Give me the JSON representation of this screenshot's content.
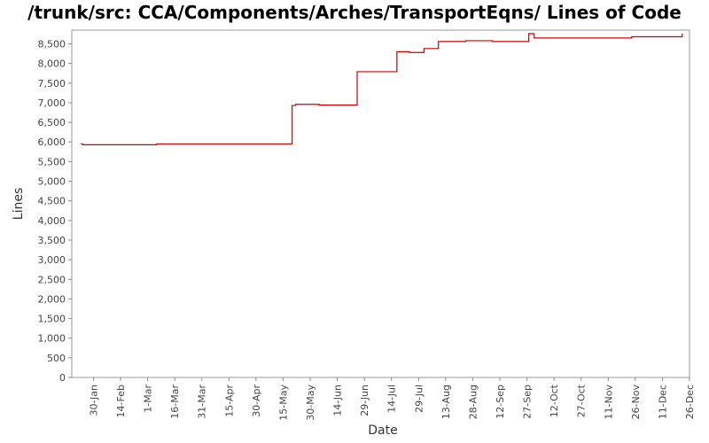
{
  "chart_data": {
    "type": "line",
    "title": "/trunk/src: CCA/Components/Arches/TransportEqns/ Lines of Code",
    "xlabel": "Date",
    "ylabel": "Lines",
    "x_tick_labels": [
      "30-Jan",
      "14-Feb",
      "1-Mar",
      "16-Mar",
      "31-Mar",
      "15-Apr",
      "30-Apr",
      "15-May",
      "30-May",
      "14-Jun",
      "29-Jun",
      "14-Jul",
      "29-Jul",
      "13-Aug",
      "28-Aug",
      "12-Sep",
      "27-Sep",
      "12-Oct",
      "27-Oct",
      "11-Nov",
      "26-Nov",
      "11-Dec",
      "26-Dec"
    ],
    "x_tick_days": [
      30,
      45,
      60,
      75,
      90,
      105,
      120,
      135,
      150,
      165,
      180,
      195,
      210,
      225,
      240,
      255,
      270,
      285,
      300,
      315,
      330,
      345,
      360
    ],
    "xlim": [
      18,
      360
    ],
    "y_ticks": [
      0,
      500,
      1000,
      1500,
      2000,
      2500,
      3000,
      3500,
      4000,
      4500,
      5000,
      5500,
      6000,
      6500,
      7000,
      7500,
      8000,
      8500
    ],
    "y_tick_labels": [
      "0",
      "500",
      "1,000",
      "1,500",
      "2,000",
      "2,500",
      "3,000",
      "3,500",
      "4,000",
      "4,500",
      "5,000",
      "5,500",
      "6,000",
      "6,500",
      "7,000",
      "7,500",
      "8,000",
      "8,500"
    ],
    "ylim": [
      0,
      8850
    ],
    "grid": false,
    "series": [
      {
        "color": "#cc0000",
        "step": true,
        "x": [
          23,
          24,
          64,
          65,
          139,
          140,
          142,
          154,
          155,
          175,
          176,
          197,
          198,
          204,
          205,
          212,
          213,
          220,
          221,
          235,
          236,
          250,
          251,
          270,
          271,
          273,
          274,
          327,
          328,
          355,
          356
        ],
        "y": [
          5950,
          5930,
          5930,
          5950,
          5950,
          6930,
          6960,
          6960,
          6940,
          6940,
          7790,
          7790,
          8300,
          8300,
          8280,
          8280,
          8380,
          8380,
          8560,
          8560,
          8580,
          8580,
          8560,
          8560,
          8760,
          8760,
          8650,
          8650,
          8680,
          8680,
          8760
        ]
      }
    ]
  }
}
